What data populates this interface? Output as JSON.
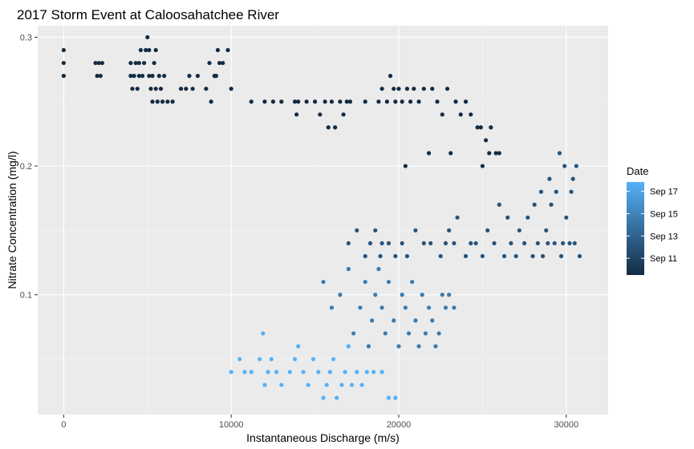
{
  "chart_data": {
    "type": "scatter",
    "title": "2017 Storm Event at Caloosahatchee River",
    "xlabel": "Instantaneous Discharge (m/s)",
    "ylabel": "Nitrate Concentration (mg/l)",
    "xlim": [
      -1550,
      32500
    ],
    "ylim": [
      0.007,
      0.309
    ],
    "x_ticks": [
      0,
      10000,
      20000,
      30000
    ],
    "x_tick_labels": [
      "0",
      "10000",
      "20000",
      "30000"
    ],
    "y_ticks": [
      0.1,
      0.2,
      0.3
    ],
    "y_tick_labels": [
      "0.1",
      "0.2",
      "0.3"
    ],
    "grid": true,
    "legend": {
      "title": "Date",
      "placement": "right",
      "labels": [
        "Sep 17",
        "Sep 15",
        "Sep 13",
        "Sep 11"
      ],
      "positions": [
        0.9,
        0.66,
        0.42,
        0.18
      ],
      "color_low": "#132B43",
      "color_high": "#56B1F7"
    },
    "colors": {
      "panel": "#EBEBEB",
      "grid_major": "#FFFFFF",
      "early": "#132B43",
      "mid": "#2F6A9A",
      "late": "#56B1F7"
    },
    "series": [
      {
        "color_value": 0.0,
        "points": [
          [
            0,
            0.27
          ],
          [
            0,
            0.28
          ],
          [
            0,
            0.29
          ],
          [
            1900,
            0.28
          ],
          [
            2000,
            0.27
          ],
          [
            2100,
            0.28
          ],
          [
            2200,
            0.27
          ],
          [
            2300,
            0.28
          ],
          [
            4000,
            0.27
          ],
          [
            4000,
            0.28
          ],
          [
            4100,
            0.26
          ],
          [
            4200,
            0.27
          ],
          [
            4300,
            0.28
          ],
          [
            4400,
            0.26
          ],
          [
            4500,
            0.27
          ],
          [
            4500,
            0.28
          ],
          [
            4600,
            0.29
          ],
          [
            4700,
            0.27
          ],
          [
            4800,
            0.28
          ],
          [
            4900,
            0.29
          ],
          [
            5000,
            0.3
          ],
          [
            5100,
            0.27
          ],
          [
            5100,
            0.29
          ],
          [
            5200,
            0.26
          ],
          [
            5300,
            0.25
          ],
          [
            5300,
            0.27
          ],
          [
            5400,
            0.28
          ],
          [
            5500,
            0.26
          ],
          [
            5500,
            0.29
          ],
          [
            5600,
            0.25
          ],
          [
            5700,
            0.27
          ],
          [
            5800,
            0.26
          ],
          [
            5900,
            0.25
          ],
          [
            6000,
            0.27
          ],
          [
            6200,
            0.25
          ],
          [
            6500,
            0.25
          ],
          [
            7000,
            0.26
          ],
          [
            7300,
            0.26
          ],
          [
            7500,
            0.27
          ],
          [
            7700,
            0.26
          ],
          [
            8000,
            0.27
          ],
          [
            8500,
            0.26
          ],
          [
            8700,
            0.28
          ],
          [
            8800,
            0.25
          ],
          [
            9000,
            0.27
          ],
          [
            9100,
            0.27
          ],
          [
            9200,
            0.29
          ],
          [
            9300,
            0.28
          ],
          [
            9500,
            0.28
          ],
          [
            9800,
            0.29
          ],
          [
            10000,
            0.26
          ],
          [
            11200,
            0.25
          ],
          [
            12000,
            0.25
          ],
          [
            12500,
            0.25
          ],
          [
            13000,
            0.25
          ],
          [
            13800,
            0.25
          ],
          [
            13900,
            0.24
          ],
          [
            14000,
            0.25
          ],
          [
            14500,
            0.25
          ],
          [
            15000,
            0.25
          ],
          [
            15300,
            0.24
          ],
          [
            15600,
            0.25
          ],
          [
            15800,
            0.23
          ],
          [
            16000,
            0.25
          ],
          [
            16200,
            0.23
          ],
          [
            16500,
            0.25
          ],
          [
            16700,
            0.24
          ],
          [
            16900,
            0.25
          ],
          [
            17100,
            0.25
          ],
          [
            18000,
            0.25
          ],
          [
            18800,
            0.25
          ],
          [
            19000,
            0.26
          ],
          [
            19300,
            0.25
          ],
          [
            19500,
            0.27
          ],
          [
            19700,
            0.26
          ],
          [
            19800,
            0.25
          ],
          [
            20000,
            0.26
          ],
          [
            20200,
            0.25
          ],
          [
            20400,
            0.2
          ],
          [
            20500,
            0.26
          ],
          [
            20700,
            0.25
          ],
          [
            20900,
            0.26
          ],
          [
            21200,
            0.25
          ],
          [
            21500,
            0.26
          ],
          [
            21800,
            0.21
          ],
          [
            22000,
            0.26
          ],
          [
            22300,
            0.25
          ],
          [
            22600,
            0.24
          ],
          [
            22900,
            0.26
          ],
          [
            23100,
            0.21
          ],
          [
            23400,
            0.25
          ],
          [
            23700,
            0.24
          ],
          [
            24000,
            0.25
          ],
          [
            24300,
            0.24
          ],
          [
            24700,
            0.23
          ],
          [
            24900,
            0.23
          ],
          [
            25000,
            0.2
          ],
          [
            25200,
            0.22
          ],
          [
            25400,
            0.21
          ],
          [
            25500,
            0.23
          ],
          [
            25800,
            0.21
          ],
          [
            26000,
            0.21
          ]
        ]
      },
      {
        "color_value": 0.3,
        "points": [
          [
            17000,
            0.14
          ],
          [
            17500,
            0.15
          ],
          [
            18000,
            0.13
          ],
          [
            18300,
            0.14
          ],
          [
            18600,
            0.15
          ],
          [
            18900,
            0.13
          ],
          [
            19000,
            0.14
          ],
          [
            19400,
            0.14
          ],
          [
            19800,
            0.13
          ],
          [
            20200,
            0.14
          ],
          [
            20500,
            0.13
          ],
          [
            21000,
            0.15
          ],
          [
            21500,
            0.14
          ],
          [
            21900,
            0.14
          ],
          [
            22500,
            0.13
          ],
          [
            22800,
            0.14
          ],
          [
            23000,
            0.15
          ],
          [
            23300,
            0.14
          ],
          [
            23500,
            0.16
          ],
          [
            24000,
            0.13
          ],
          [
            24300,
            0.14
          ],
          [
            24600,
            0.14
          ],
          [
            25000,
            0.13
          ],
          [
            25300,
            0.15
          ],
          [
            25700,
            0.14
          ],
          [
            26000,
            0.17
          ],
          [
            26300,
            0.13
          ],
          [
            26500,
            0.16
          ],
          [
            26700,
            0.14
          ],
          [
            27000,
            0.13
          ],
          [
            27200,
            0.15
          ],
          [
            27500,
            0.14
          ],
          [
            27700,
            0.16
          ],
          [
            28000,
            0.13
          ],
          [
            28100,
            0.17
          ],
          [
            28300,
            0.14
          ],
          [
            28500,
            0.18
          ],
          [
            28600,
            0.13
          ],
          [
            28800,
            0.15
          ],
          [
            28900,
            0.14
          ],
          [
            29000,
            0.19
          ],
          [
            29100,
            0.17
          ],
          [
            29300,
            0.14
          ],
          [
            29400,
            0.18
          ],
          [
            29600,
            0.21
          ],
          [
            29700,
            0.13
          ],
          [
            29800,
            0.14
          ],
          [
            29900,
            0.2
          ],
          [
            30000,
            0.16
          ],
          [
            30200,
            0.14
          ],
          [
            30300,
            0.18
          ],
          [
            30400,
            0.19
          ],
          [
            30500,
            0.14
          ],
          [
            30600,
            0.2
          ],
          [
            30800,
            0.13
          ]
        ]
      },
      {
        "color_value": 0.6,
        "points": [
          [
            15500,
            0.11
          ],
          [
            16000,
            0.09
          ],
          [
            16500,
            0.1
          ],
          [
            17000,
            0.12
          ],
          [
            17300,
            0.07
          ],
          [
            17700,
            0.09
          ],
          [
            18000,
            0.11
          ],
          [
            18200,
            0.06
          ],
          [
            18400,
            0.08
          ],
          [
            18600,
            0.1
          ],
          [
            18800,
            0.12
          ],
          [
            19000,
            0.09
          ],
          [
            19200,
            0.07
          ],
          [
            19400,
            0.11
          ],
          [
            19700,
            0.08
          ],
          [
            20000,
            0.06
          ],
          [
            20200,
            0.1
          ],
          [
            20400,
            0.09
          ],
          [
            20600,
            0.07
          ],
          [
            20800,
            0.11
          ],
          [
            21000,
            0.08
          ],
          [
            21200,
            0.06
          ],
          [
            21400,
            0.1
          ],
          [
            21600,
            0.07
          ],
          [
            21800,
            0.09
          ],
          [
            22000,
            0.08
          ],
          [
            22200,
            0.06
          ],
          [
            22400,
            0.07
          ],
          [
            22600,
            0.1
          ],
          [
            22800,
            0.09
          ],
          [
            23000,
            0.1
          ],
          [
            23300,
            0.09
          ]
        ]
      },
      {
        "color_value": 1.0,
        "points": [
          [
            10000,
            0.04
          ],
          [
            10500,
            0.05
          ],
          [
            10800,
            0.04
          ],
          [
            11200,
            0.04
          ],
          [
            11700,
            0.05
          ],
          [
            11900,
            0.07
          ],
          [
            12000,
            0.03
          ],
          [
            12200,
            0.04
          ],
          [
            12400,
            0.05
          ],
          [
            12700,
            0.04
          ],
          [
            13000,
            0.03
          ],
          [
            13500,
            0.04
          ],
          [
            13800,
            0.05
          ],
          [
            14000,
            0.06
          ],
          [
            14300,
            0.04
          ],
          [
            14600,
            0.03
          ],
          [
            14900,
            0.05
          ],
          [
            15200,
            0.04
          ],
          [
            15500,
            0.02
          ],
          [
            15700,
            0.03
          ],
          [
            15900,
            0.04
          ],
          [
            16100,
            0.05
          ],
          [
            16300,
            0.02
          ],
          [
            16600,
            0.03
          ],
          [
            16800,
            0.04
          ],
          [
            17000,
            0.06
          ],
          [
            17200,
            0.03
          ],
          [
            17500,
            0.04
          ],
          [
            17800,
            0.03
          ],
          [
            18100,
            0.04
          ],
          [
            18500,
            0.04
          ],
          [
            19000,
            0.04
          ],
          [
            19400,
            0.02
          ],
          [
            19800,
            0.02
          ]
        ]
      }
    ]
  }
}
